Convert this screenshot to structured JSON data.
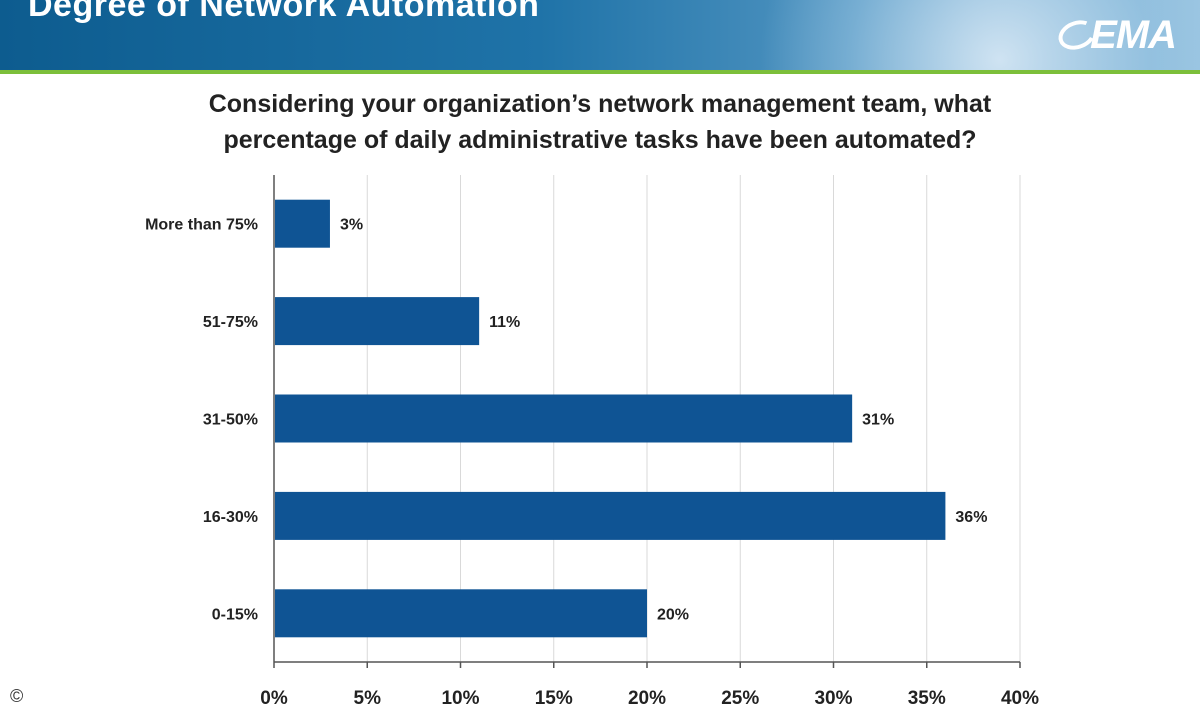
{
  "header": {
    "title": "Degree of Network Automation",
    "logo_text": "EMA"
  },
  "question": {
    "line1": "Considering your organization’s network management team, what",
    "line2": "percentage of daily administrative tasks have been automated?"
  },
  "chart_data": {
    "type": "bar",
    "orientation": "horizontal",
    "title": "Considering your organization’s network management team, what percentage of daily administrative tasks have been automated?",
    "categories": [
      "More than 75%",
      "51-75%",
      "31-50%",
      "16-30%",
      "0-15%"
    ],
    "values": [
      3,
      11,
      31,
      36,
      20
    ],
    "data_labels": [
      "3%",
      "11%",
      "31%",
      "36%",
      "20%"
    ],
    "xlim": [
      0,
      40
    ],
    "x_ticks": [
      0,
      5,
      10,
      15,
      20,
      25,
      30,
      35,
      40
    ],
    "x_tick_labels": [
      "0%",
      "5%",
      "10%",
      "15%",
      "20%",
      "25%",
      "30%",
      "35%",
      "40%"
    ],
    "grid": true,
    "bar_color": "#0f5494"
  },
  "copyright": "©"
}
